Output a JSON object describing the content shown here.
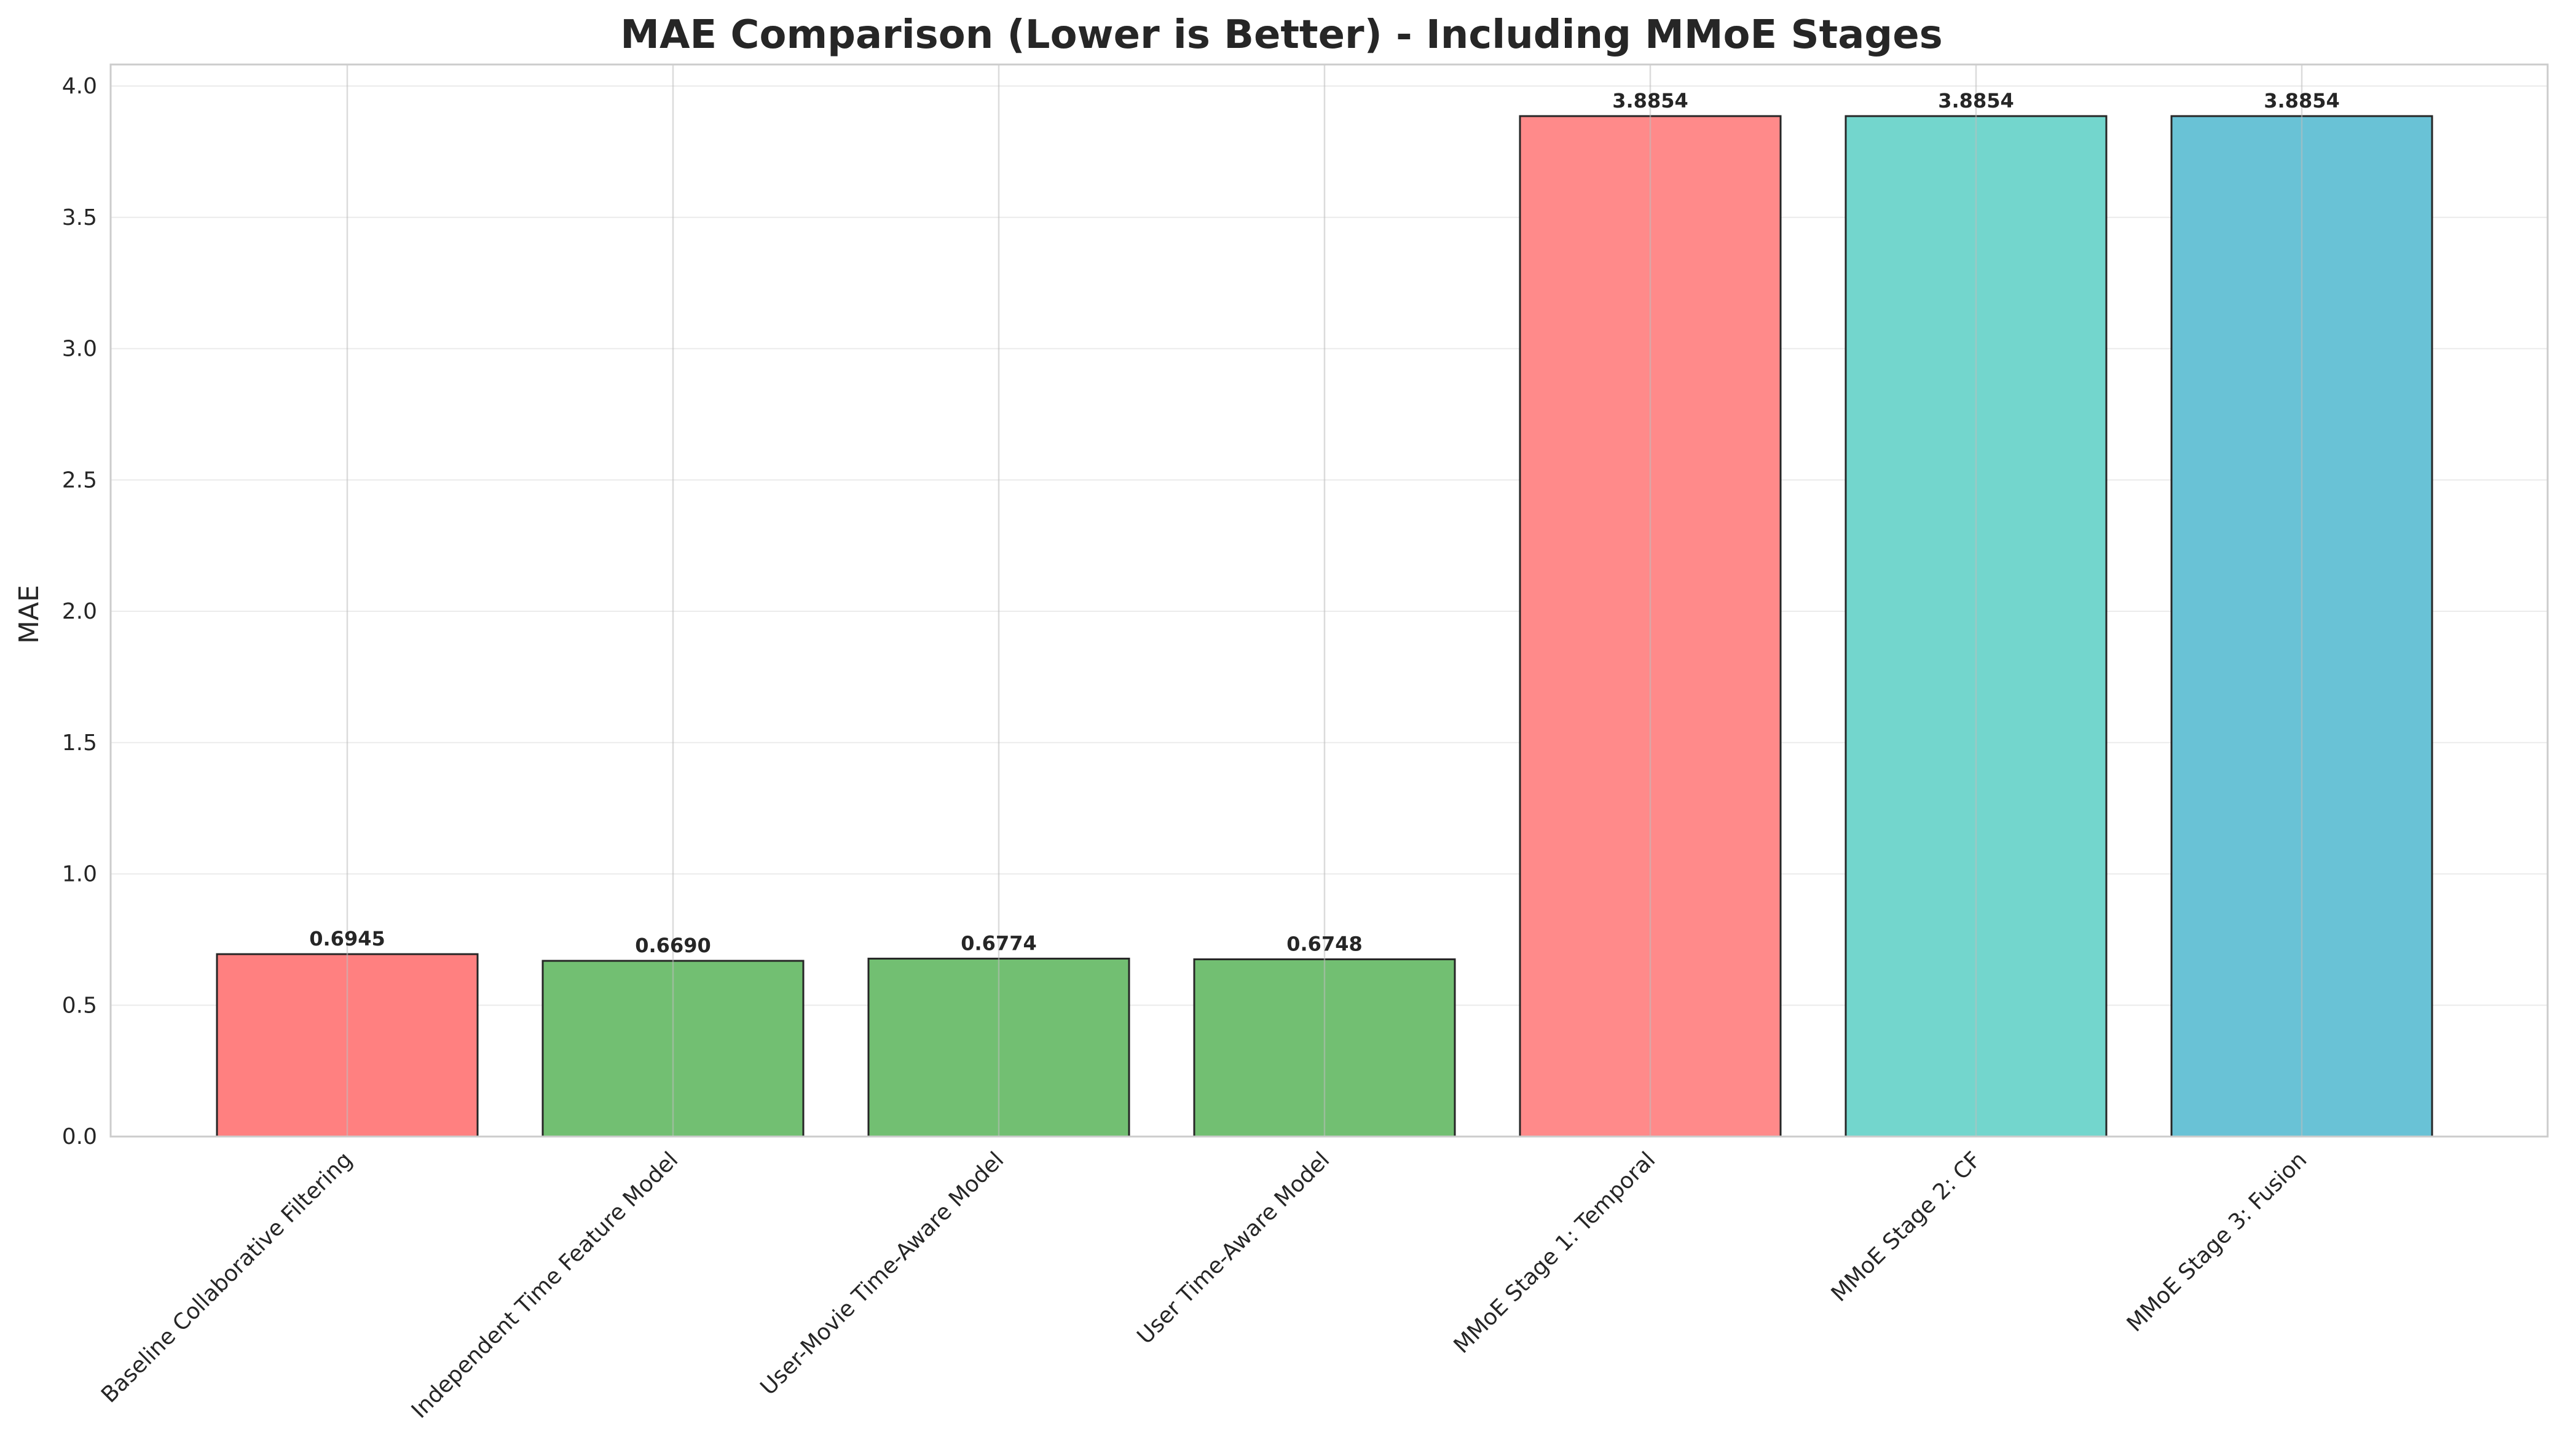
{
  "chart_data": {
    "type": "bar",
    "title": "MAE Comparison (Lower is Better) - Including MMoE Stages",
    "xlabel": "",
    "ylabel": "MAE",
    "ylim": [
      0,
      4.1
    ],
    "yticks": [
      "0.0",
      "0.5",
      "1.0",
      "1.5",
      "2.0",
      "2.5",
      "3.0",
      "3.5",
      "4.0"
    ],
    "grid": true,
    "categories": [
      "Baseline Collaborative Filtering",
      "Independent Time Feature Model",
      "User-Movie Time-Aware Model",
      "User Time-Aware Model",
      "MMoE Stage 1: Temporal",
      "MMoE Stage 2: CF",
      "MMoE Stage 3: Fusion"
    ],
    "values": [
      0.6945,
      0.669,
      0.6774,
      0.6748,
      3.8854,
      3.8854,
      3.8854
    ],
    "value_labels": [
      "0.6945",
      "0.6690",
      "0.6774",
      "0.6748",
      "3.8854",
      "3.8854",
      "3.8854"
    ],
    "colors": [
      "#ff8080",
      "#72bf72",
      "#72bf72",
      "#72bf72",
      "#ff8a8a",
      "#73d6cd",
      "#69c2d6"
    ]
  }
}
